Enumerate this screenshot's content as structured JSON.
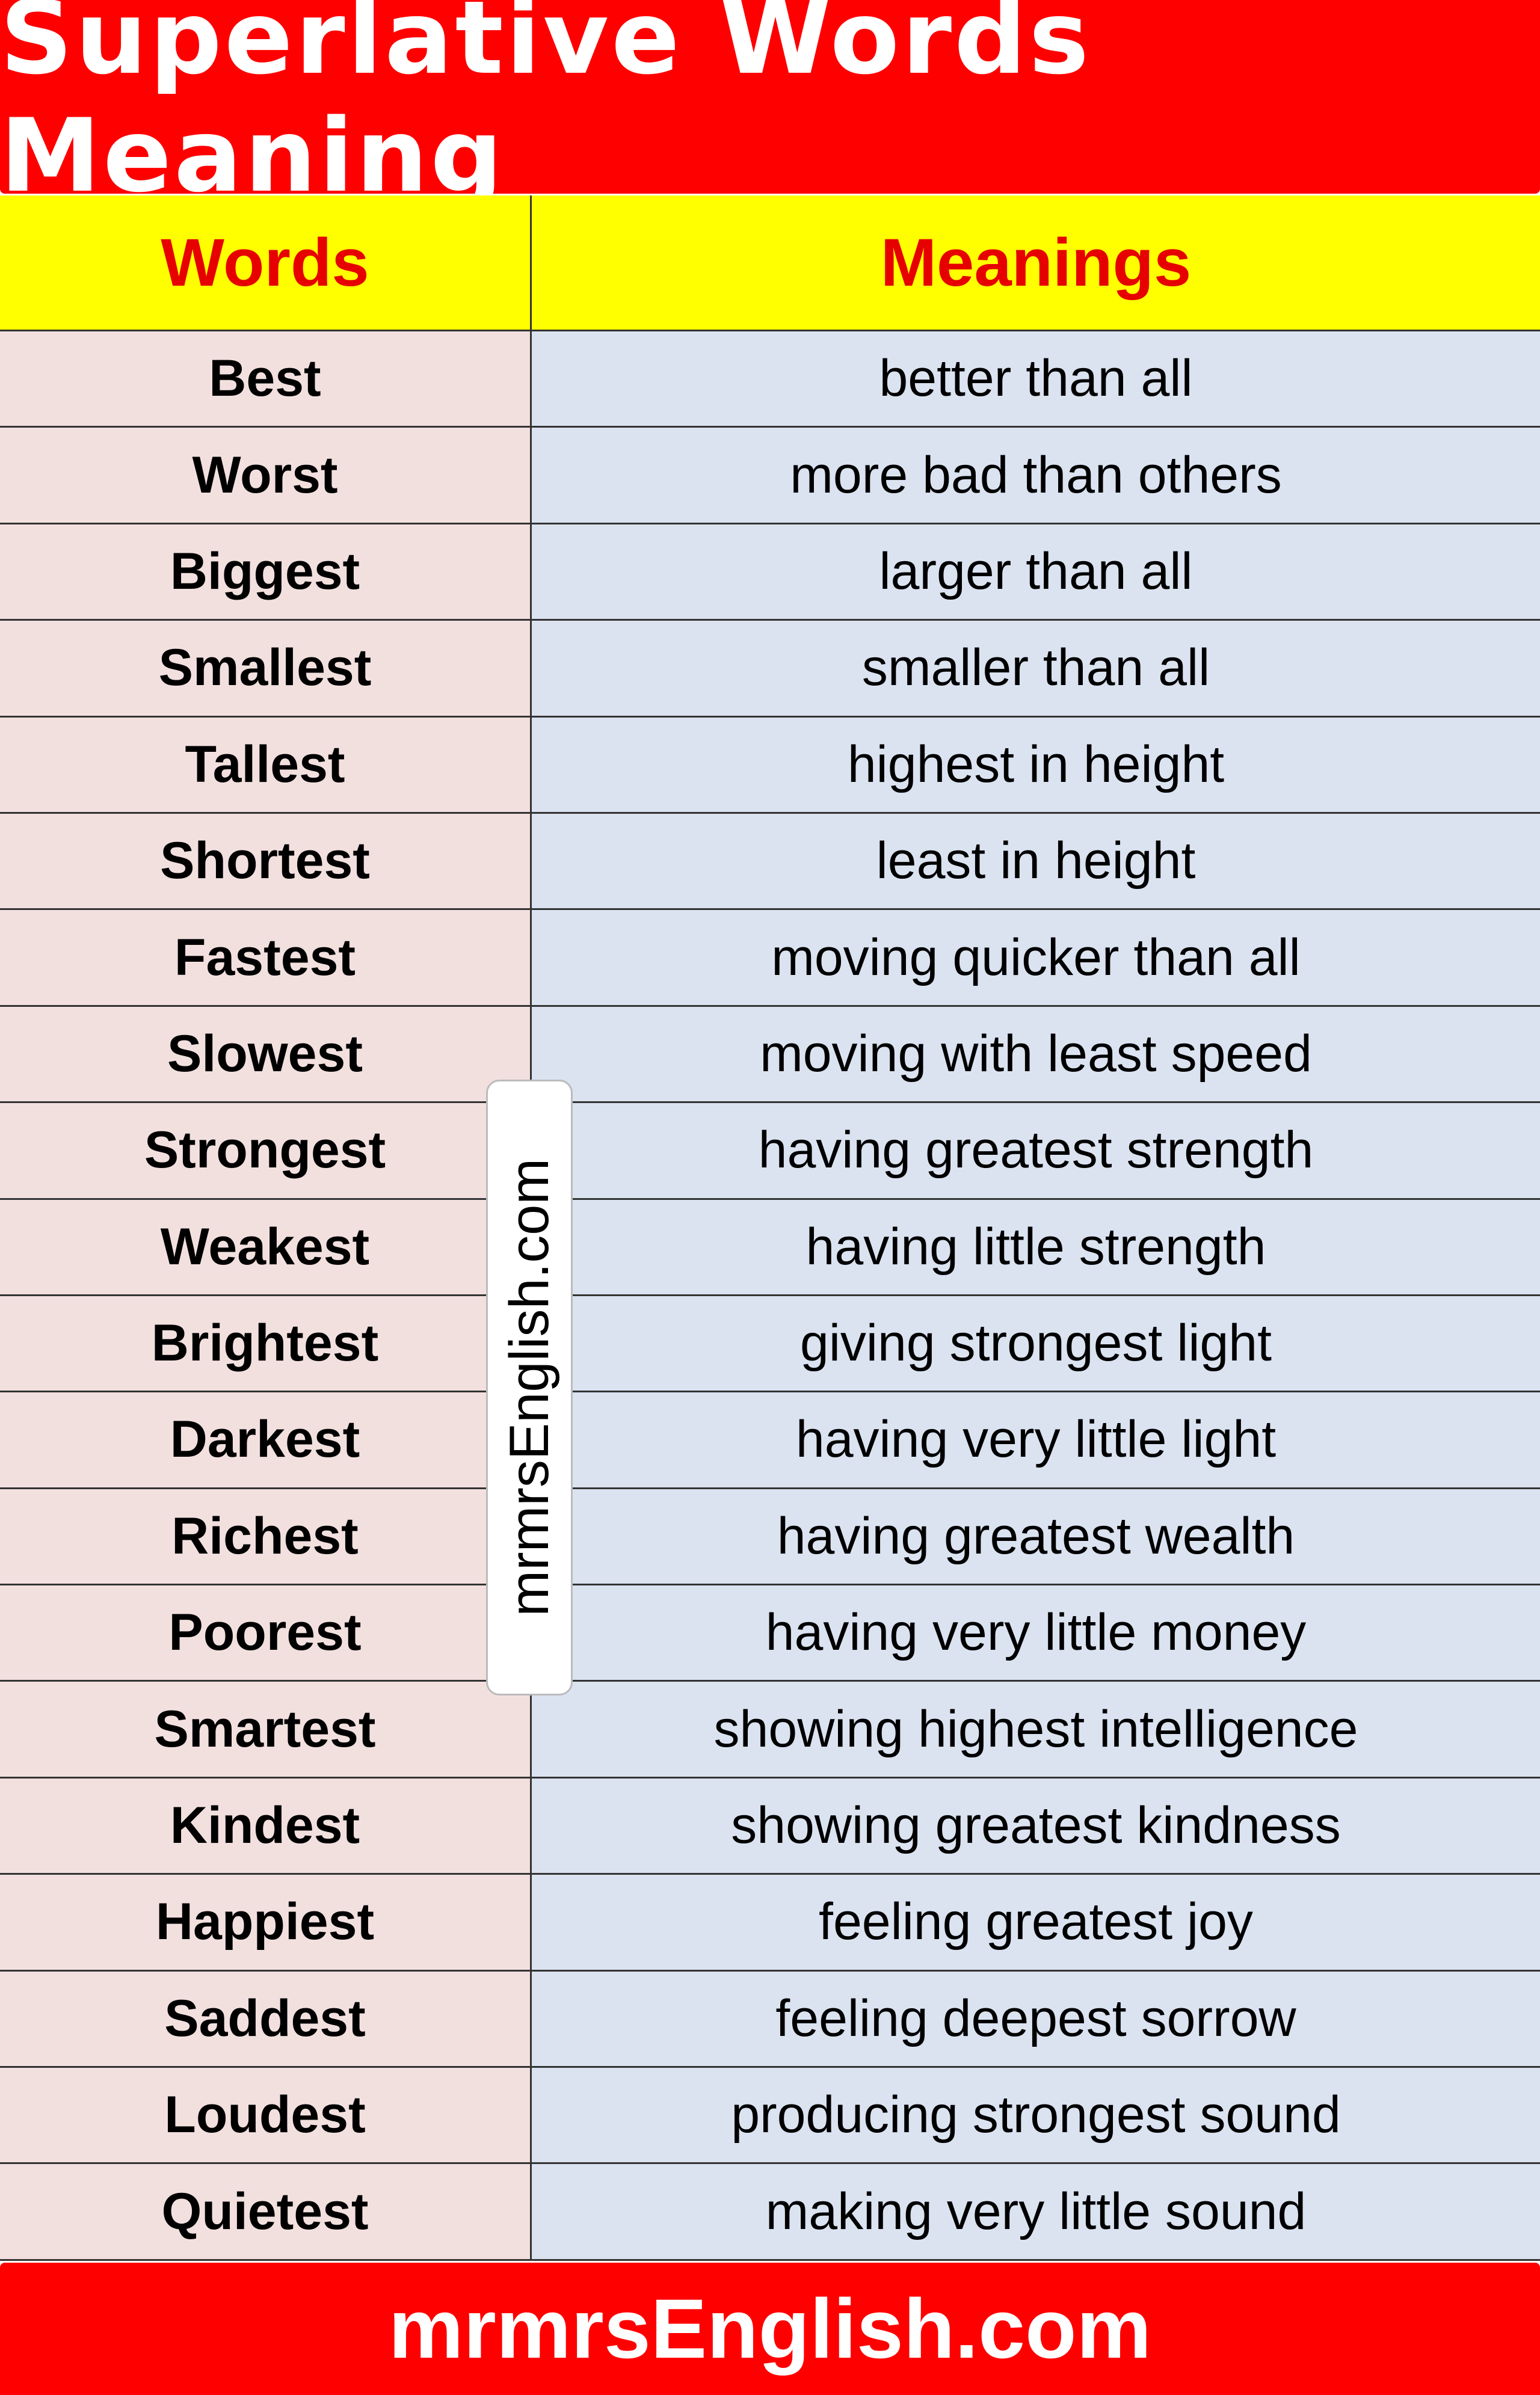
{
  "header": {
    "title": "Superlative Words Meaning"
  },
  "table": {
    "columns": [
      "Words",
      "Meanings"
    ],
    "rows": [
      [
        "Best",
        "better than all"
      ],
      [
        "Worst",
        "more bad than others"
      ],
      [
        "Biggest",
        "larger than all"
      ],
      [
        "Smallest",
        "smaller than all"
      ],
      [
        "Tallest",
        "highest in height"
      ],
      [
        "Shortest",
        "least in height"
      ],
      [
        "Fastest",
        "moving quicker than all"
      ],
      [
        "Slowest",
        "moving with least speed"
      ],
      [
        "Strongest",
        "having greatest strength"
      ],
      [
        "Weakest",
        "having little strength"
      ],
      [
        "Brightest",
        "giving strongest light"
      ],
      [
        "Darkest",
        "having very little light"
      ],
      [
        "Richest",
        "having greatest wealth"
      ],
      [
        "Poorest",
        "having very little money"
      ],
      [
        "Smartest",
        "showing highest intelligence"
      ],
      [
        "Kindest",
        "showing greatest kindness"
      ],
      [
        "Happiest",
        "feeling greatest joy"
      ],
      [
        "Saddest",
        "feeling deepest sorrow"
      ],
      [
        "Loudest",
        "producing strongest sound"
      ],
      [
        "Quietest",
        "making very little sound"
      ]
    ]
  },
  "watermark": "mrmrsEnglish.com",
  "footer": {
    "text": "mrmrsEnglish.com"
  }
}
